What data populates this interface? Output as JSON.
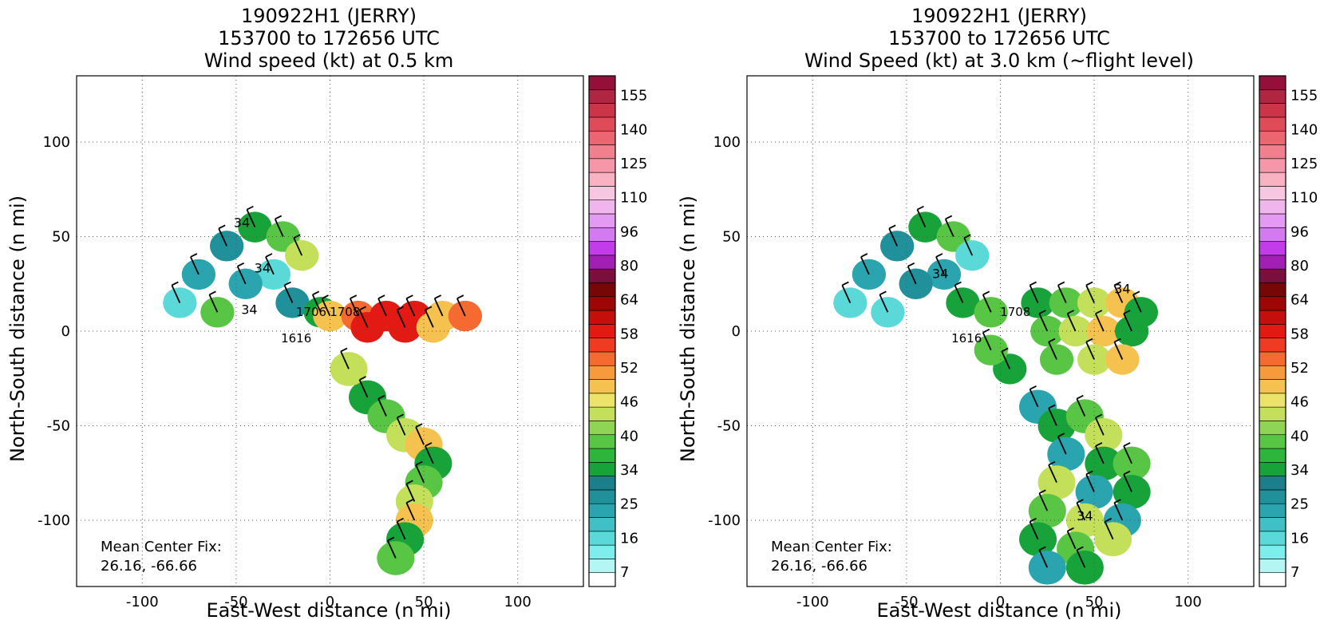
{
  "chart_data": [
    {
      "type": "heatmap",
      "title_lines": [
        "190922H1 (JERRY)",
        "153700 to 172656 UTC",
        "Wind speed (kt) at 0.5 km"
      ],
      "xlabel": "East-West distance (n mi)",
      "ylabel": "North-South distance (n mi)",
      "xlim": [
        -135,
        135
      ],
      "ylim": [
        -135,
        135
      ],
      "xticks": [
        -100,
        -50,
        0,
        50,
        100
      ],
      "yticks": [
        -100,
        -50,
        0,
        50,
        100
      ],
      "grid": true,
      "annotation_lines": [
        "Mean Center Fix:",
        "26.16, -66.66"
      ],
      "contour_labels": [
        {
          "text": "34",
          "x": -47,
          "y": 55
        },
        {
          "text": "34",
          "x": -36,
          "y": 31
        },
        {
          "text": "34",
          "x": -43,
          "y": 9
        }
      ],
      "track_labels": [
        {
          "text": "1616",
          "x": -18,
          "y": -6
        },
        {
          "text": "1708",
          "x": 8,
          "y": 8
        },
        {
          "text": "1706",
          "x": -10,
          "y": 8
        }
      ],
      "regions": [
        {
          "band": "north-arc",
          "speeds": [
            18,
            25,
            28,
            34,
            40,
            46
          ]
        },
        {
          "band": "east-leg",
          "speeds": [
            52,
            58,
            64,
            70
          ]
        },
        {
          "band": "south-leg",
          "speeds": [
            34,
            40,
            46,
            52
          ]
        }
      ]
    },
    {
      "type": "heatmap",
      "title_lines": [
        "190922H1 (JERRY)",
        "153700 to 172656 UTC",
        "Wind Speed (kt) at 3.0 km (~flight level)"
      ],
      "xlabel": "East-West distance (n mi)",
      "ylabel": "North-South distance (n mi)",
      "xlim": [
        -135,
        135
      ],
      "ylim": [
        -135,
        135
      ],
      "xticks": [
        -100,
        -50,
        0,
        50,
        100
      ],
      "yticks": [
        -100,
        -50,
        0,
        50,
        100
      ],
      "grid": true,
      "annotation_lines": [
        "Mean Center Fix:",
        "26.16, -66.66"
      ],
      "contour_labels": [
        {
          "text": "34",
          "x": -32,
          "y": 28
        },
        {
          "text": "34",
          "x": 65,
          "y": 20
        },
        {
          "text": "34",
          "x": 45,
          "y": -100
        }
      ],
      "track_labels": [
        {
          "text": "1616",
          "x": -18,
          "y": -6
        },
        {
          "text": "1708",
          "x": 8,
          "y": 8
        }
      ],
      "regions": [
        {
          "band": "north-arc",
          "speeds": [
            16,
            25,
            28,
            34,
            40
          ]
        },
        {
          "band": "east-leg",
          "speeds": [
            34,
            40,
            46,
            52
          ]
        },
        {
          "band": "south-leg",
          "speeds": [
            25,
            34,
            40,
            46
          ]
        }
      ]
    }
  ],
  "colorbar": {
    "labels": [
      "7",
      "16",
      "25",
      "34",
      "40",
      "46",
      "52",
      "58",
      "64",
      "80",
      "96",
      "110",
      "125",
      "140",
      "155"
    ],
    "colors": [
      "#ffffff",
      "#b4f6f3",
      "#7eedee",
      "#5bd8d8",
      "#40bfc6",
      "#2aa4ae",
      "#20909a",
      "#1a7f8a",
      "#17a33a",
      "#2db53c",
      "#58c544",
      "#8fd454",
      "#c4e05a",
      "#ede36a",
      "#f5c24f",
      "#f79a3c",
      "#f46a30",
      "#ee3b21",
      "#e31a14",
      "#c60e0b",
      "#9e0606",
      "#770606",
      "#7a0f3e",
      "#a21eb4",
      "#c23cea",
      "#d47af0",
      "#e39af3",
      "#f0b5ec",
      "#f7c6e0",
      "#f8b2c2",
      "#f597a9",
      "#f1808e",
      "#eb6670",
      "#e04b58",
      "#cc3548",
      "#b02540",
      "#94103a"
    ]
  }
}
